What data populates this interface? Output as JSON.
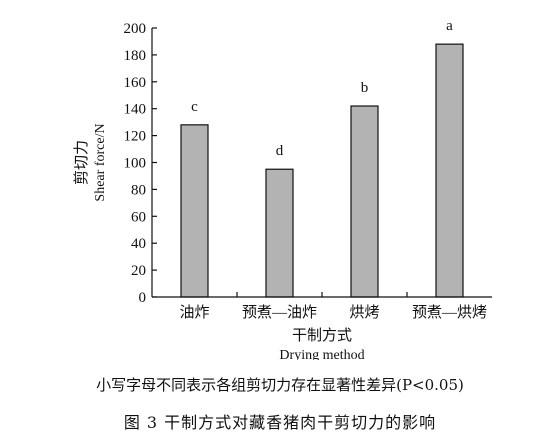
{
  "chart_data": {
    "type": "bar",
    "categories": [
      "油炸",
      "预煮—油炸",
      "烘烤",
      "预煮—烘烤"
    ],
    "values": [
      128,
      95,
      142,
      188
    ],
    "significance": [
      "c",
      "d",
      "b",
      "a"
    ],
    "xlabel_cn": "干制方式",
    "xlabel_en": "Drying method",
    "ylabel_cn": "剪切力",
    "ylabel_en": "Shear force/N",
    "ylim": [
      0,
      200
    ],
    "yticks": [
      0,
      20,
      40,
      60,
      80,
      100,
      120,
      140,
      160,
      180,
      200
    ],
    "bar_color": "#b3b3b3",
    "grid": false
  },
  "note": "小写字母不同表示各组剪切力存在显著性差异(P<0.05)",
  "caption": "图 3   干制方式对藏香猪肉干剪切力的影响"
}
